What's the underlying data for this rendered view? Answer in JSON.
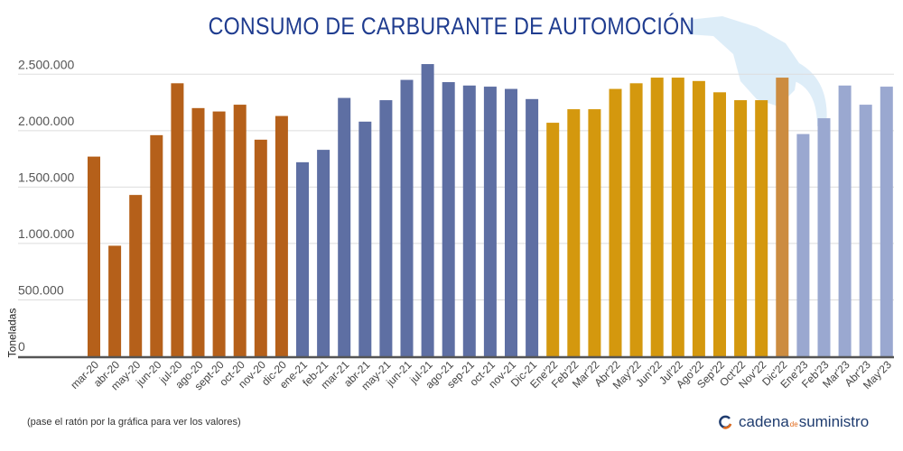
{
  "chart_data": {
    "type": "bar",
    "title": "CONSUMO DE CARBURANTE DE AUTOMOCIÓN",
    "ylabel": "Toneladas",
    "xlabel": "",
    "ylim": [
      0,
      2500000
    ],
    "yticks": [
      0,
      500000,
      1000000,
      1500000,
      2000000,
      2500000
    ],
    "ytick_labels": [
      "0",
      "500.000",
      "1.000.000",
      "1.500.000",
      "2.000.000",
      "2.500.000"
    ],
    "grid": true,
    "categories": [
      "mar-20",
      "abr-20",
      "may-20",
      "jun-20",
      "jul-20",
      "ago-20",
      "sept-20",
      "oct-20",
      "nov-20",
      "dic-20",
      "ene-21",
      "feb-21",
      "mar-21",
      "abr-21",
      "may-21",
      "jun-21",
      "jul-21",
      "ago-21",
      "sep-21",
      "oct-21",
      "nov-21",
      "Dic-21",
      "Ene'22",
      "Feb'22",
      "Mar'22",
      "Abr'22",
      "May'22",
      "Jun'22",
      "Jul'22",
      "Ago'22",
      "Sep'22",
      "Oct'22",
      "Nov'22",
      "Dic'22",
      "Ene'23",
      "Feb'23",
      "Mar'23",
      "Abr'23",
      "May'23"
    ],
    "values": [
      1770000,
      980000,
      1430000,
      1960000,
      2420000,
      2200000,
      2170000,
      2230000,
      1920000,
      2130000,
      1720000,
      1830000,
      2290000,
      2080000,
      2270000,
      2450000,
      2590000,
      2430000,
      2400000,
      2390000,
      2370000,
      2280000,
      2070000,
      2190000,
      2190000,
      2370000,
      2420000,
      2470000,
      2470000,
      2440000,
      2340000,
      2270000,
      2270000,
      2470000,
      1970000,
      2110000,
      2400000,
      2230000,
      2390000
    ],
    "bar_colors": [
      "#b5601a",
      "#b5601a",
      "#b5601a",
      "#b5601a",
      "#b5601a",
      "#b5601a",
      "#b5601a",
      "#b5601a",
      "#b5601a",
      "#b5601a",
      "#5e6fa3",
      "#5e6fa3",
      "#5e6fa3",
      "#5e6fa3",
      "#5e6fa3",
      "#5e6fa3",
      "#5e6fa3",
      "#5e6fa3",
      "#5e6fa3",
      "#5e6fa3",
      "#5e6fa3",
      "#5e6fa3",
      "#d4980e",
      "#d4980e",
      "#d4980e",
      "#d4980e",
      "#d4980e",
      "#d4980e",
      "#d4980e",
      "#d4980e",
      "#d4980e",
      "#d4980e",
      "#d4980e",
      "#cc8c40",
      "#9aa8d0",
      "#9aa8d0",
      "#9aa8d0",
      "#9aa8d0",
      "#9aa8d0"
    ]
  },
  "note": "(pase el ratón por la gráfica para ver los valores)",
  "logo": {
    "part1": "cadena",
    "part2": "de",
    "part3": "suministro"
  },
  "colors": {
    "title": "#1f3c8f",
    "watermark": "#d6e9f7"
  }
}
